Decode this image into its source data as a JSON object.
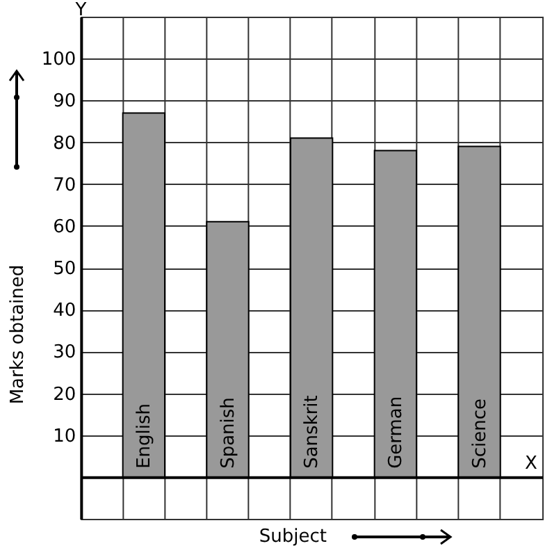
{
  "chart_data": {
    "type": "bar",
    "xlabel": "Subject",
    "ylabel": "Marks obtained",
    "categories": [
      "English",
      "Spanish",
      "Sanskrit",
      "German",
      "Science"
    ],
    "values": [
      87,
      61,
      81,
      78,
      79
    ],
    "color": "#999999",
    "ylim": [
      -10,
      110
    ],
    "yticks": [
      10,
      20,
      30,
      40,
      50,
      60,
      70,
      80,
      90,
      100
    ],
    "grid": true,
    "annotations": [
      "Y",
      "X"
    ]
  }
}
